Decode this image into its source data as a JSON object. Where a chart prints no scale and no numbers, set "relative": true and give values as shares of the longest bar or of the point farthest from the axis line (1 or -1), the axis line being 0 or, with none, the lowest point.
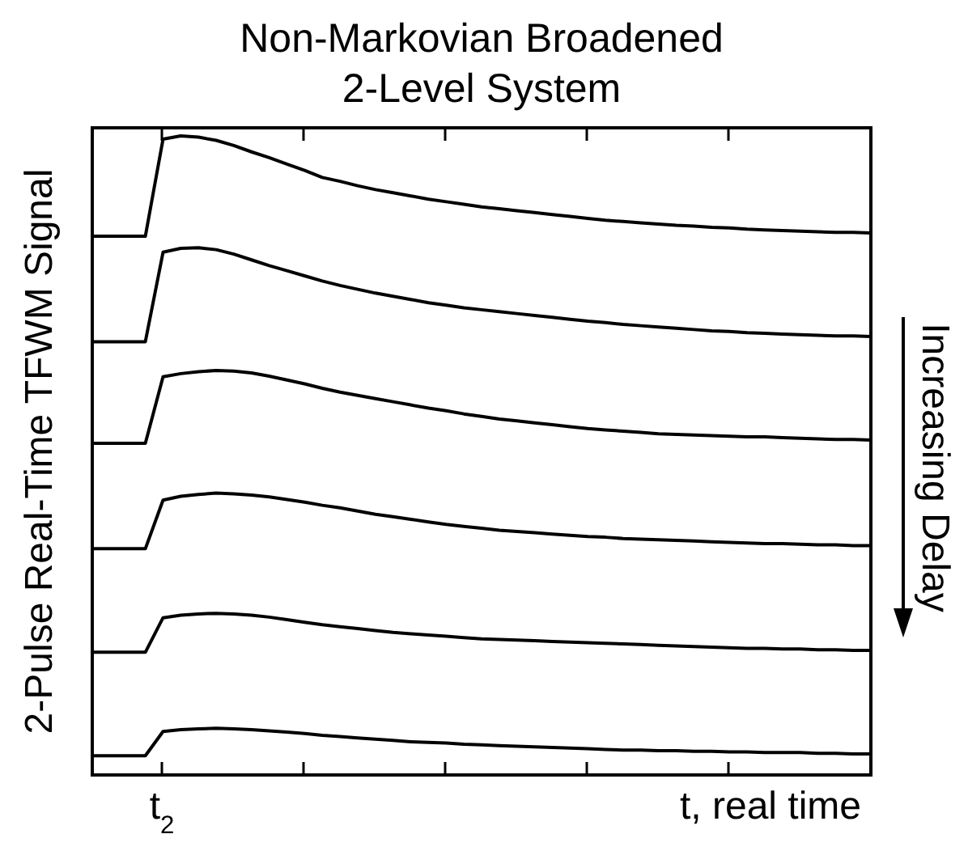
{
  "chart_data": {
    "type": "line",
    "title": "Non-Markovian Broadened 2-Level System",
    "ylabel": "2-Pulse Real-Time TFWM Signal",
    "xlabel": "t, real time",
    "annotations": [
      "t$_{2}$",
      "Increasing Delay"
    ],
    "relative": true,
    "line_style": "solid",
    "marker": "none",
    "categories": [
      null,
      null,
      null,
      null,
      null,
      null,
      null,
      null,
      null,
      null,
      null,
      null,
      null,
      null,
      null,
      null,
      null,
      null,
      null,
      null,
      null,
      null,
      null,
      null,
      null,
      null,
      null,
      null,
      null,
      null,
      null,
      null,
      null,
      null,
      null,
      null,
      null,
      null,
      null,
      null,
      null,
      null,
      null,
      null,
      null
    ],
    "series": [
      {
        "color": "#000000",
        "values": [
          0.843,
          0.843,
          0.843,
          0.843,
          0.995,
          1.0,
          0.998,
          0.993,
          0.985,
          0.975,
          0.966,
          0.956,
          0.946,
          0.935,
          0.929,
          0.922,
          0.916,
          0.911,
          0.906,
          0.901,
          0.897,
          0.893,
          0.889,
          0.886,
          0.883,
          0.88,
          0.877,
          0.874,
          0.871,
          0.868,
          0.866,
          0.864,
          0.862,
          0.86,
          0.859,
          0.857,
          0.856,
          0.854,
          0.853,
          0.852,
          0.851,
          0.85,
          0.849,
          0.849,
          0.848
        ]
      },
      {
        "color": "#000000",
        "values": [
          0.678,
          0.678,
          0.678,
          0.678,
          0.818,
          0.824,
          0.825,
          0.822,
          0.815,
          0.806,
          0.797,
          0.789,
          0.781,
          0.773,
          0.766,
          0.76,
          0.754,
          0.749,
          0.744,
          0.739,
          0.735,
          0.731,
          0.728,
          0.725,
          0.722,
          0.719,
          0.716,
          0.713,
          0.71,
          0.708,
          0.705,
          0.703,
          0.701,
          0.699,
          0.697,
          0.695,
          0.694,
          0.692,
          0.691,
          0.69,
          0.689,
          0.688,
          0.687,
          0.687,
          0.686
        ]
      },
      {
        "color": "#000000",
        "values": [
          0.519,
          0.519,
          0.519,
          0.519,
          0.623,
          0.628,
          0.631,
          0.633,
          0.632,
          0.629,
          0.624,
          0.618,
          0.612,
          0.605,
          0.599,
          0.594,
          0.589,
          0.584,
          0.579,
          0.574,
          0.57,
          0.565,
          0.561,
          0.557,
          0.554,
          0.551,
          0.548,
          0.545,
          0.542,
          0.54,
          0.538,
          0.536,
          0.534,
          0.533,
          0.532,
          0.531,
          0.53,
          0.529,
          0.529,
          0.528,
          0.527,
          0.526,
          0.525,
          0.525,
          0.524
        ]
      },
      {
        "color": "#000000",
        "values": [
          0.354,
          0.354,
          0.354,
          0.354,
          0.43,
          0.436,
          0.439,
          0.441,
          0.44,
          0.438,
          0.435,
          0.431,
          0.427,
          0.422,
          0.418,
          0.413,
          0.408,
          0.404,
          0.4,
          0.396,
          0.392,
          0.389,
          0.386,
          0.383,
          0.381,
          0.379,
          0.377,
          0.375,
          0.373,
          0.372,
          0.37,
          0.369,
          0.368,
          0.367,
          0.366,
          0.365,
          0.364,
          0.363,
          0.362,
          0.362,
          0.361,
          0.36,
          0.36,
          0.359,
          0.359
        ]
      },
      {
        "color": "#000000",
        "values": [
          0.192,
          0.192,
          0.192,
          0.192,
          0.246,
          0.25,
          0.252,
          0.253,
          0.252,
          0.25,
          0.247,
          0.243,
          0.239,
          0.235,
          0.232,
          0.229,
          0.226,
          0.223,
          0.221,
          0.219,
          0.217,
          0.215,
          0.213,
          0.212,
          0.211,
          0.21,
          0.209,
          0.208,
          0.207,
          0.206,
          0.205,
          0.204,
          0.203,
          0.202,
          0.201,
          0.2,
          0.199,
          0.198,
          0.198,
          0.197,
          0.197,
          0.196,
          0.196,
          0.195,
          0.195
        ]
      },
      {
        "color": "#000000",
        "values": [
          0.03,
          0.03,
          0.03,
          0.03,
          0.068,
          0.071,
          0.072,
          0.073,
          0.072,
          0.071,
          0.069,
          0.067,
          0.065,
          0.062,
          0.06,
          0.058,
          0.056,
          0.054,
          0.052,
          0.051,
          0.05,
          0.048,
          0.047,
          0.046,
          0.045,
          0.044,
          0.043,
          0.042,
          0.041,
          0.04,
          0.039,
          0.039,
          0.038,
          0.038,
          0.037,
          0.037,
          0.036,
          0.036,
          0.035,
          0.035,
          0.035,
          0.034,
          0.034,
          0.033,
          0.033
        ]
      }
    ]
  }
}
